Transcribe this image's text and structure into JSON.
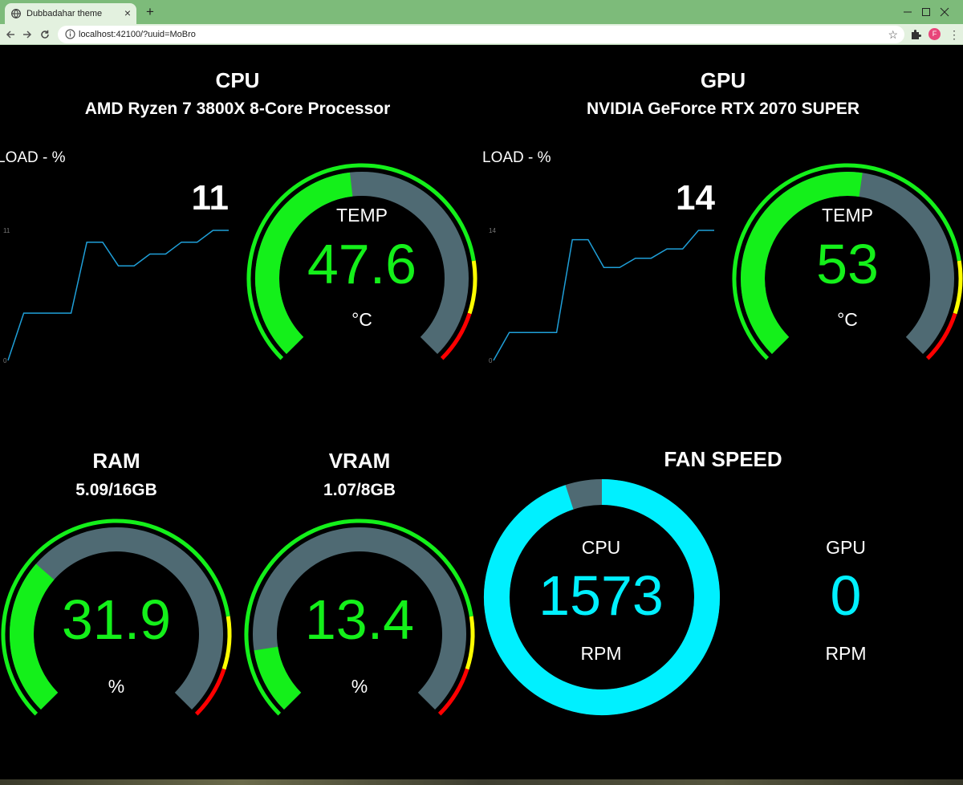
{
  "browser": {
    "tab_title": "Dubbadahar theme",
    "tab_close": "×",
    "new_tab": "+",
    "url": "localhost:42100/?uuid=MoBro",
    "profile_initial": "F"
  },
  "cpu": {
    "title": "CPU",
    "model": "AMD Ryzen 7 3800X 8-Core Processor",
    "load_label": "LOAD - %",
    "load_value": "11",
    "sparkline": {
      "y_max_label": "11",
      "y_min_label": "0",
      "values": [
        0,
        4,
        4,
        4,
        4,
        10,
        10,
        8,
        8,
        9,
        9,
        10,
        10,
        11,
        11
      ],
      "ymax": 11
    },
    "temp": {
      "label": "TEMP",
      "value": "47.6",
      "unit": "°C",
      "fraction": 0.476
    }
  },
  "gpu": {
    "title": "GPU",
    "model": "NVIDIA GeForce RTX 2070 SUPER",
    "load_label": "LOAD - %",
    "load_value": "14",
    "sparkline": {
      "y_max_label": "14",
      "y_min_label": "0",
      "values": [
        0,
        3,
        3,
        3,
        3,
        13,
        13,
        10,
        10,
        11,
        11,
        12,
        12,
        14,
        14
      ],
      "ymax": 14
    },
    "temp": {
      "label": "TEMP",
      "value": "53",
      "unit": "°C",
      "fraction": 0.53
    }
  },
  "ram": {
    "title": "RAM",
    "usage": "5.09/16GB",
    "value": "31.9",
    "unit": "%",
    "fraction": 0.319
  },
  "vram": {
    "title": "VRAM",
    "usage": "1.07/8GB",
    "value": "13.4",
    "unit": "%",
    "fraction": 0.134
  },
  "fan": {
    "title": "FAN SPEED",
    "cpu": {
      "label": "CPU",
      "value": "1573",
      "unit": "RPM",
      "fraction": 0.95
    },
    "gpu": {
      "label": "GPU",
      "value": "0",
      "unit": "RPM"
    }
  },
  "colors": {
    "green": "#14f01a",
    "track": "#4f6a73",
    "yellow": "#ffff00",
    "red": "#ff0000",
    "cyan": "#00f0ff",
    "spark": "#1f9fd8"
  }
}
